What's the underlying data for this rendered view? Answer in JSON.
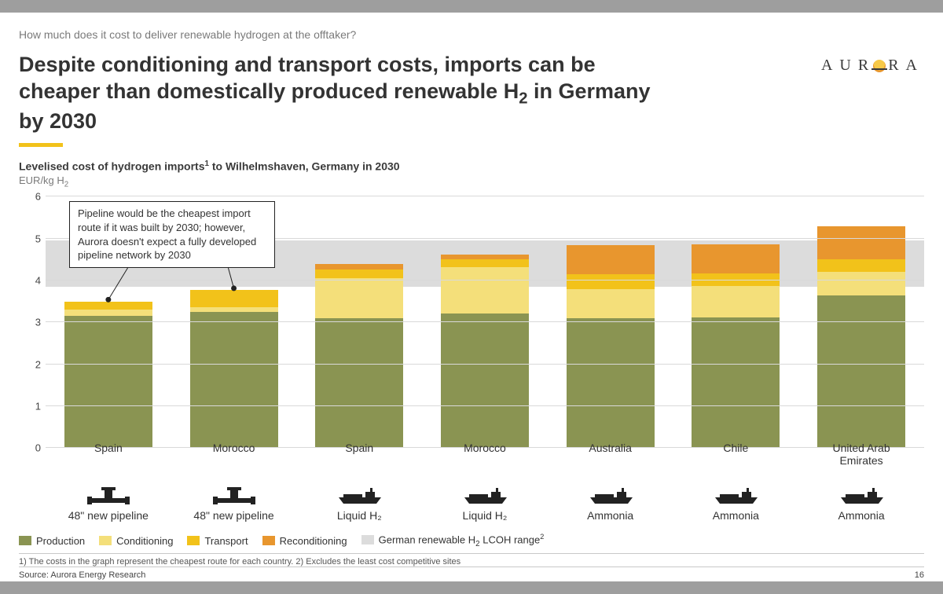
{
  "kicker": "How much does it cost to deliver renewable hydrogen at the offtaker?",
  "headline_a": "Despite conditioning and transport costs, imports can be cheaper than domestically produced renewable H",
  "headline_b": " in Germany by 2030",
  "logo_text_a": "AUR",
  "logo_text_b": "RA",
  "subtitle_a": "Levelised cost of hydrogen imports",
  "subtitle_b": " to Wilhelmshaven, Germany in 2030",
  "unit_a": "EUR/kg H",
  "chart": {
    "type": "stacked-bar",
    "ylim": [
      0,
      6
    ],
    "ytick_step": 1,
    "grid_color": "#d9d9d9",
    "background_color": "#ffffff",
    "lcoh_band": {
      "low": 3.85,
      "high": 4.95,
      "color": "#dcdcdc"
    },
    "segments": [
      {
        "key": "production",
        "label": "Production",
        "color": "#8a9452"
      },
      {
        "key": "conditioning",
        "label": "Conditioning",
        "color": "#f4df7a"
      },
      {
        "key": "transport",
        "label": "Transport",
        "color": "#f2c21a"
      },
      {
        "key": "reconditioning",
        "label": "Reconditioning",
        "color": "#e8962e"
      }
    ],
    "legend_extra": {
      "label_a": "German renewable H",
      "label_b": " LCOH range",
      "color": "#dcdcdc"
    },
    "bars": [
      {
        "country": "Spain",
        "route": "48\" new pipeline",
        "icon": "pipeline",
        "production": 3.15,
        "conditioning": 0.15,
        "transport": 0.2,
        "reconditioning": 0.0
      },
      {
        "country": "Morocco",
        "route": "48\" new pipeline",
        "icon": "pipeline",
        "production": 3.25,
        "conditioning": 0.12,
        "transport": 0.4,
        "reconditioning": 0.0
      },
      {
        "country": "Spain",
        "route": "Liquid H₂",
        "icon": "ship",
        "production": 3.1,
        "conditioning": 0.95,
        "transport": 0.22,
        "reconditioning": 0.12
      },
      {
        "country": "Morocco",
        "route": "Liquid H₂",
        "icon": "ship",
        "production": 3.22,
        "conditioning": 1.1,
        "transport": 0.18,
        "reconditioning": 0.12
      },
      {
        "country": "Australia",
        "route": "Ammonia",
        "icon": "ship",
        "production": 3.1,
        "conditioning": 0.7,
        "transport": 0.35,
        "reconditioning": 0.7
      },
      {
        "country": "Chile",
        "route": "Ammonia",
        "icon": "ship",
        "production": 3.12,
        "conditioning": 0.75,
        "transport": 0.3,
        "reconditioning": 0.7
      },
      {
        "country": "United Arab Emirates",
        "route": "Ammonia",
        "icon": "ship",
        "production": 3.65,
        "conditioning": 0.55,
        "transport": 0.3,
        "reconditioning": 0.8
      }
    ]
  },
  "callout": "Pipeline would be the cheapest import route if it was built by 2030; however, Aurora doesn't expect a fully developed pipeline network by 2030",
  "footnote": "1) The costs in the graph represent the cheapest route for each country. 2) Excludes the least cost competitive sites",
  "source": "Source: Aurora Energy Research",
  "page_number": "16"
}
